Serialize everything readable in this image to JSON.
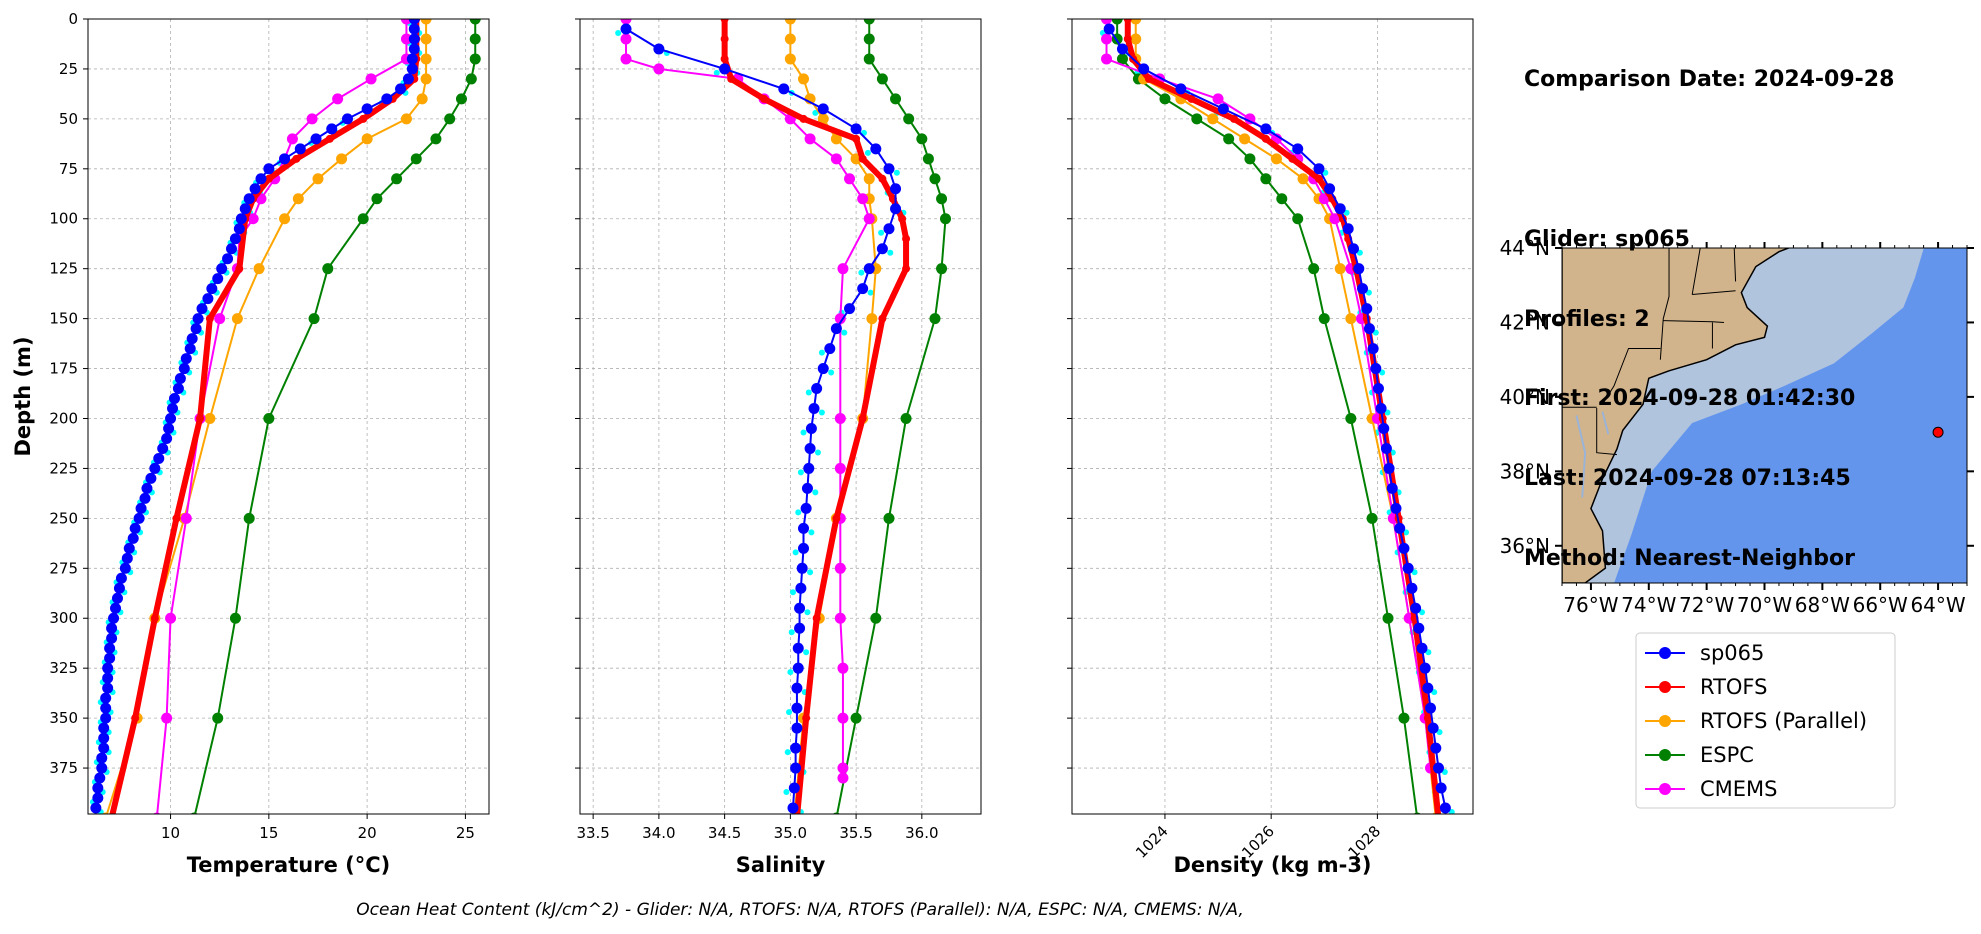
{
  "info": {
    "comparison_date": "Comparison Date: 2024-09-28",
    "glider": "Glider: sp065",
    "profiles": "Profiles: 2",
    "first": "First: 2024-09-28 01:42:30",
    "last": "Last: 2024-09-28 07:13:45",
    "method": "Method: Nearest-Neighbor"
  },
  "footer": "Ocean Heat Content (kJ/cm^2) - Glider: N/A,  RTOFS: N/A,  RTOFS (Parallel): N/A,  ESPC: N/A,  CMEMS: N/A,",
  "colors": {
    "sp065": "#0000ff",
    "RTOFS": "#ff0000",
    "RTOFS (Parallel)": "#ffa500",
    "ESPC": "#008000",
    "CMEMS": "#ff00ff",
    "raw": "#00ffff",
    "land": "#d2b48c",
    "shelf": "#b0c4de",
    "deep": "#6495ed"
  },
  "chart_data": [
    {
      "type": "line",
      "xlabel": "Temperature (°C)",
      "ylabel": "Depth (m)",
      "xlim": [
        5.8,
        26.2
      ],
      "ylim": [
        398,
        0
      ],
      "xticks": [
        10,
        15,
        20,
        25
      ],
      "yticks": [
        0,
        25,
        50,
        75,
        100,
        125,
        150,
        175,
        200,
        225,
        250,
        275,
        300,
        325,
        350,
        375
      ],
      "grid": true,
      "series": [
        {
          "name": "sp065",
          "depth": [
            0,
            5,
            10,
            15,
            20,
            25,
            30,
            35,
            40,
            45,
            50,
            55,
            60,
            65,
            70,
            75,
            80,
            85,
            90,
            95,
            100,
            105,
            110,
            115,
            120,
            125,
            130,
            135,
            140,
            145,
            150,
            155,
            160,
            165,
            170,
            175,
            180,
            185,
            190,
            195,
            200,
            205,
            210,
            215,
            220,
            225,
            230,
            235,
            240,
            245,
            250,
            255,
            260,
            265,
            270,
            275,
            280,
            285,
            290,
            295,
            300,
            305,
            310,
            315,
            320,
            325,
            330,
            335,
            340,
            345,
            350,
            355,
            360,
            365,
            370,
            375,
            380,
            385,
            390,
            395
          ],
          "values": [
            22.4,
            22.4,
            22.4,
            22.4,
            22.3,
            22.3,
            22.1,
            21.7,
            21.0,
            20.0,
            19.0,
            18.2,
            17.4,
            16.6,
            15.8,
            15.0,
            14.6,
            14.3,
            14.0,
            13.8,
            13.6,
            13.5,
            13.3,
            13.1,
            12.9,
            12.6,
            12.4,
            12.1,
            11.9,
            11.6,
            11.4,
            11.3,
            11.1,
            11.0,
            10.8,
            10.7,
            10.5,
            10.4,
            10.2,
            10.1,
            10.0,
            9.9,
            9.8,
            9.6,
            9.4,
            9.2,
            9.0,
            8.8,
            8.7,
            8.5,
            8.4,
            8.2,
            8.1,
            7.9,
            7.8,
            7.7,
            7.5,
            7.4,
            7.3,
            7.2,
            7.1,
            7.0,
            7.0,
            6.9,
            6.9,
            6.8,
            6.8,
            6.8,
            6.7,
            6.7,
            6.7,
            6.6,
            6.6,
            6.6,
            6.5,
            6.5,
            6.4,
            6.3,
            6.3,
            6.2
          ]
        },
        {
          "name": "RTOFS",
          "depth": [
            0,
            10,
            20,
            30,
            40,
            50,
            60,
            70,
            80,
            90,
            100,
            125,
            150,
            200,
            250,
            300,
            350,
            400
          ],
          "values": [
            22.5,
            22.5,
            22.5,
            22.4,
            21.3,
            19.8,
            18.1,
            16.4,
            15.0,
            14.2,
            13.8,
            13.5,
            12.0,
            11.5,
            10.3,
            9.2,
            8.2,
            7.0
          ]
        },
        {
          "name": "RTOFS (Parallel)",
          "depth": [
            0,
            10,
            20,
            30,
            40,
            50,
            60,
            70,
            80,
            90,
            100,
            125,
            150,
            200,
            250,
            300,
            350,
            400
          ],
          "values": [
            23.0,
            23.0,
            23.0,
            23.0,
            22.8,
            22.0,
            20.0,
            18.7,
            17.5,
            16.5,
            15.8,
            14.5,
            13.4,
            12.0,
            10.7,
            9.2,
            8.3,
            6.7
          ]
        },
        {
          "name": "ESPC",
          "depth": [
            0,
            10,
            20,
            30,
            40,
            50,
            60,
            70,
            80,
            90,
            100,
            125,
            150,
            200,
            250,
            300,
            350,
            400
          ],
          "values": [
            25.5,
            25.5,
            25.5,
            25.3,
            24.8,
            24.2,
            23.5,
            22.5,
            21.5,
            20.5,
            19.8,
            18.0,
            17.3,
            15.0,
            14.0,
            13.3,
            12.4,
            11.2
          ]
        },
        {
          "name": "CMEMS",
          "depth": [
            0,
            10,
            20,
            30,
            40,
            50,
            60,
            70,
            80,
            90,
            100,
            110,
            125,
            150,
            200,
            250,
            300,
            350,
            400
          ],
          "values": [
            22.0,
            22.0,
            22.0,
            20.2,
            18.5,
            17.2,
            16.2,
            15.8,
            15.3,
            14.6,
            14.2,
            13.5,
            13.4,
            12.5,
            11.5,
            10.8,
            10.0,
            9.8,
            9.3
          ],
          "note_depths_end": 380
        }
      ]
    },
    {
      "type": "line",
      "xlabel": "Salinity",
      "ylabel": "",
      "xlim": [
        33.4,
        36.45
      ],
      "ylim": [
        398,
        0
      ],
      "xticks": [
        33.5,
        34.0,
        34.5,
        35.0,
        35.5,
        36.0
      ],
      "grid": true,
      "series": [
        {
          "name": "sp065",
          "depth": [
            5,
            15,
            25,
            35,
            45,
            55,
            65,
            75,
            85,
            95,
            105,
            115,
            125,
            135,
            145,
            155,
            165,
            175,
            185,
            195,
            205,
            215,
            225,
            235,
            245,
            255,
            265,
            275,
            285,
            295,
            305,
            315,
            325,
            335,
            345,
            355,
            365,
            375,
            385,
            395
          ],
          "values": [
            33.75,
            34.0,
            34.5,
            34.95,
            35.25,
            35.5,
            35.65,
            35.75,
            35.8,
            35.8,
            35.75,
            35.7,
            35.6,
            35.55,
            35.45,
            35.35,
            35.3,
            35.25,
            35.2,
            35.18,
            35.16,
            35.15,
            35.14,
            35.13,
            35.12,
            35.1,
            35.1,
            35.09,
            35.08,
            35.07,
            35.07,
            35.06,
            35.06,
            35.05,
            35.05,
            35.05,
            35.04,
            35.04,
            35.03,
            35.02
          ]
        },
        {
          "name": "RTOFS",
          "depth": [
            0,
            10,
            20,
            30,
            40,
            50,
            60,
            70,
            80,
            90,
            100,
            110,
            125,
            150,
            200,
            250,
            300,
            350,
            400
          ],
          "values": [
            34.5,
            34.5,
            34.5,
            34.55,
            34.8,
            35.1,
            35.5,
            35.55,
            35.7,
            35.78,
            35.85,
            35.88,
            35.88,
            35.7,
            35.55,
            35.35,
            35.2,
            35.12,
            35.05
          ]
        },
        {
          "name": "RTOFS (Parallel)",
          "depth": [
            0,
            10,
            20,
            30,
            40,
            50,
            60,
            70,
            80,
            90,
            100,
            125,
            150,
            200,
            250,
            300,
            350,
            400
          ],
          "values": [
            35.0,
            35.0,
            35.0,
            35.1,
            35.15,
            35.25,
            35.35,
            35.5,
            35.6,
            35.6,
            35.62,
            35.65,
            35.62,
            35.55,
            35.35,
            35.22,
            35.1,
            35.03
          ]
        },
        {
          "name": "ESPC",
          "depth": [
            0,
            10,
            20,
            30,
            40,
            50,
            60,
            70,
            80,
            90,
            100,
            125,
            150,
            200,
            250,
            300,
            350,
            400
          ],
          "values": [
            35.6,
            35.6,
            35.6,
            35.7,
            35.8,
            35.9,
            36.0,
            36.05,
            36.1,
            36.15,
            36.18,
            36.15,
            36.1,
            35.88,
            35.75,
            35.65,
            35.5,
            35.35
          ]
        },
        {
          "name": "CMEMS",
          "depth": [
            0,
            10,
            20,
            25,
            30,
            40,
            50,
            60,
            70,
            80,
            90,
            100,
            125,
            150,
            200,
            225,
            250,
            275,
            300,
            325,
            350,
            375,
            380
          ],
          "values": [
            33.75,
            33.75,
            33.75,
            34.0,
            34.6,
            34.8,
            35.0,
            35.15,
            35.35,
            35.45,
            35.55,
            35.6,
            35.4,
            35.38,
            35.38,
            35.38,
            35.38,
            35.38,
            35.38,
            35.4,
            35.4,
            35.4,
            35.4
          ]
        }
      ]
    },
    {
      "type": "line",
      "xlabel": "Density (kg m-3)",
      "ylabel": "",
      "xlim": [
        1022.25,
        1029.8
      ],
      "ylim": [
        398,
        0
      ],
      "xticks": [
        1024,
        1026,
        1028
      ],
      "grid": true,
      "series": [
        {
          "name": "sp065",
          "depth": [
            5,
            15,
            25,
            35,
            45,
            55,
            65,
            75,
            85,
            95,
            105,
            115,
            125,
            135,
            145,
            155,
            165,
            175,
            185,
            195,
            205,
            215,
            225,
            235,
            245,
            255,
            265,
            275,
            285,
            295,
            305,
            315,
            325,
            335,
            345,
            355,
            365,
            375,
            385,
            395
          ],
          "values": [
            1022.95,
            1023.2,
            1023.6,
            1024.3,
            1025.1,
            1025.9,
            1026.5,
            1026.9,
            1027.1,
            1027.3,
            1027.45,
            1027.55,
            1027.65,
            1027.72,
            1027.8,
            1027.85,
            1027.92,
            1027.97,
            1028.02,
            1028.07,
            1028.12,
            1028.17,
            1028.22,
            1028.28,
            1028.35,
            1028.42,
            1028.5,
            1028.58,
            1028.65,
            1028.72,
            1028.78,
            1028.84,
            1028.9,
            1028.95,
            1029.0,
            1029.05,
            1029.1,
            1029.15,
            1029.2,
            1029.28
          ]
        },
        {
          "name": "RTOFS",
          "depth": [
            0,
            10,
            20,
            30,
            40,
            50,
            60,
            70,
            80,
            90,
            100,
            110,
            125,
            150,
            200,
            250,
            300,
            350,
            400
          ],
          "values": [
            1023.3,
            1023.3,
            1023.4,
            1023.7,
            1024.5,
            1025.3,
            1025.9,
            1026.4,
            1026.9,
            1027.15,
            1027.35,
            1027.45,
            1027.6,
            1027.8,
            1028.1,
            1028.4,
            1028.7,
            1028.95,
            1029.15
          ]
        },
        {
          "name": "RTOFS (Parallel)",
          "depth": [
            0,
            10,
            20,
            30,
            40,
            50,
            60,
            70,
            80,
            90,
            100,
            125,
            150,
            200,
            250,
            300,
            350,
            400
          ],
          "values": [
            1023.45,
            1023.45,
            1023.45,
            1023.6,
            1024.3,
            1024.9,
            1025.5,
            1026.1,
            1026.6,
            1026.9,
            1027.1,
            1027.3,
            1027.5,
            1027.9,
            1028.3,
            1028.6,
            1028.9,
            1029.1
          ]
        },
        {
          "name": "ESPC",
          "depth": [
            0,
            10,
            20,
            30,
            40,
            50,
            60,
            70,
            80,
            90,
            100,
            125,
            150,
            200,
            250,
            300,
            350,
            400
          ],
          "values": [
            1023.1,
            1023.1,
            1023.2,
            1023.5,
            1024.0,
            1024.6,
            1025.2,
            1025.6,
            1025.9,
            1026.2,
            1026.5,
            1026.8,
            1027.0,
            1027.5,
            1027.9,
            1028.2,
            1028.5,
            1028.75
          ]
        },
        {
          "name": "CMEMS",
          "depth": [
            0,
            10,
            20,
            30,
            40,
            50,
            60,
            70,
            80,
            90,
            100,
            125,
            150,
            200,
            250,
            300,
            350,
            375
          ],
          "values": [
            1022.9,
            1022.9,
            1022.9,
            1023.9,
            1025.0,
            1025.6,
            1026.1,
            1026.5,
            1026.8,
            1027.0,
            1027.2,
            1027.5,
            1027.7,
            1028.0,
            1028.3,
            1028.6,
            1028.9,
            1029.0
          ]
        }
      ]
    },
    {
      "type": "map",
      "xlim": [
        -77,
        -63
      ],
      "ylim": [
        35,
        44
      ],
      "xticks": [
        -76,
        -74,
        -72,
        -70,
        -68,
        -66,
        -64
      ],
      "xtick_labels": [
        "76°W",
        "74°W",
        "72°W",
        "70°W",
        "68°W",
        "66°W",
        "64°W"
      ],
      "yticks": [
        36,
        38,
        40,
        42,
        44
      ],
      "ytick_labels": [
        "36°N",
        "38°N",
        "40°N",
        "42°N",
        "44°N"
      ],
      "glider_position": {
        "lon": -64.0,
        "lat": 39.05
      }
    }
  ],
  "legend": {
    "placement": "lower-right",
    "items": [
      "sp065",
      "RTOFS",
      "RTOFS (Parallel)",
      "ESPC",
      "CMEMS"
    ]
  }
}
